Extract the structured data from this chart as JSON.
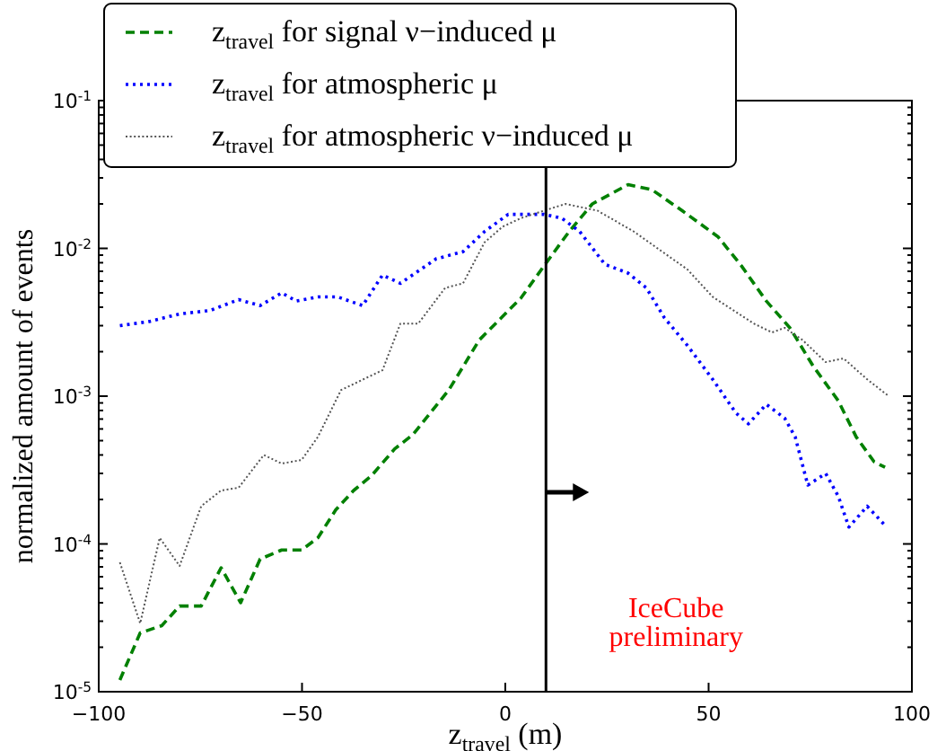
{
  "chart_data": {
    "type": "line",
    "xlabel": "z$_{travel}$ (m)",
    "ylabel": "normalized amount of events",
    "log": "y",
    "xlim": [
      -100,
      100
    ],
    "xticks": [
      {
        "value": -100,
        "label": "−100"
      },
      {
        "value": -50,
        "label": "−50"
      },
      0,
      50,
      100
    ],
    "ylim": [
      1e-05,
      0.1
    ],
    "yticks": [
      {
        "value": 1e-05,
        "label": "10$^{-5}$"
      },
      {
        "value": 2e-05,
        "label": null
      },
      {
        "value": 3e-05,
        "label": null
      },
      {
        "value": 4e-05,
        "label": null
      },
      {
        "value": 5e-05,
        "label": null
      },
      {
        "value": 6e-05,
        "label": null
      },
      {
        "value": 7e-05,
        "label": null
      },
      {
        "value": 8e-05,
        "label": null
      },
      {
        "value": 9e-05,
        "label": null
      },
      {
        "value": 0.0001,
        "label": "10$^{-4}$"
      },
      {
        "value": 0.0002,
        "label": null
      },
      {
        "value": 0.0003,
        "label": null
      },
      {
        "value": 0.0004,
        "label": null
      },
      {
        "value": 0.0005,
        "label": null
      },
      {
        "value": 0.0006,
        "label": null
      },
      {
        "value": 0.0007,
        "label": null
      },
      {
        "value": 0.0008,
        "label": null
      },
      {
        "value": 0.0009,
        "label": null
      },
      {
        "value": 0.001,
        "label": "10$^{-3}$"
      },
      {
        "value": 0.002,
        "label": null
      },
      {
        "value": 0.003,
        "label": null
      },
      {
        "value": 0.004,
        "label": null
      },
      {
        "value": 0.005,
        "label": null
      },
      {
        "value": 0.006,
        "label": null
      },
      {
        "value": 0.007,
        "label": null
      },
      {
        "value": 0.008,
        "label": null
      },
      {
        "value": 0.009,
        "label": null
      },
      {
        "value": 0.01,
        "label": "10$^{-2}$"
      },
      {
        "value": 0.02,
        "label": null
      },
      {
        "value": 0.03,
        "label": null
      },
      {
        "value": 0.04,
        "label": null
      },
      {
        "value": 0.05,
        "label": null
      },
      {
        "value": 0.06,
        "label": null
      },
      {
        "value": 0.07,
        "label": null
      },
      {
        "value": 0.08,
        "label": null
      },
      {
        "value": 0.09,
        "label": null
      },
      {
        "value": 0.1,
        "label": "10$^{-1}$"
      }
    ],
    "grid": false,
    "legend": "top left",
    "marker": "none",
    "ref_lines": [
      {
        "axis": "x",
        "value": 10,
        "color": "#000000"
      }
    ],
    "annotations": [
      "IceCube\npreliminary"
    ],
    "series": [
      {
        "name": "z$_{travel}$ for signal ν−induced μ",
        "color": "#008000",
        "line_style": "dashed",
        "x": [
          -94.8,
          -89.8,
          -84.5,
          -80.1,
          -74.8,
          -69.9,
          -65.1,
          -60.3,
          -55,
          -50.1,
          -46.1,
          -41.7,
          -37.3,
          -32.9,
          -27.2,
          -22.7,
          -13.9,
          -6.4,
          3.8,
          9.5,
          15.7,
          21.4,
          30.2,
          36,
          43.5,
          52.3,
          58.1,
          64.2,
          70,
          75.7,
          81.9,
          86.3,
          90.7,
          93.4
        ],
        "values": [
          1.2e-05,
          2.5e-05,
          2.8e-05,
          3.8e-05,
          3.8e-05,
          6.9e-05,
          4e-05,
          7.9e-05,
          9.1e-05,
          9.1e-05,
          0.00011,
          0.00017,
          0.00023,
          0.00029,
          0.00044,
          0.00055,
          0.0011,
          0.0024,
          0.0046,
          0.0076,
          0.013,
          0.02,
          0.027,
          0.025,
          0.018,
          0.012,
          0.0076,
          0.0044,
          0.0029,
          0.0016,
          0.00093,
          0.00053,
          0.00036,
          0.00033
        ]
      },
      {
        "name": "z$_{travel}$ for atmospheric μ",
        "color": "#0000ff",
        "line_style": "dotted",
        "x": [
          -94.8,
          -87.6,
          -80.1,
          -72.6,
          -65.6,
          -60.3,
          -55,
          -51.4,
          -46.1,
          -41.3,
          -35.1,
          -30.2,
          -25.8,
          -17,
          -10.4,
          -5.1,
          0.7,
          3.8,
          9.5,
          13.9,
          18.3,
          24.5,
          30.2,
          34.7,
          39.1,
          44.8,
          51,
          56.7,
          59.8,
          64.2,
          68.7,
          71.3,
          74.4,
          78.8,
          81.9,
          84.5,
          89,
          93.8
        ],
        "values": [
          0.003,
          0.0032,
          0.0036,
          0.0038,
          0.0045,
          0.0041,
          0.005,
          0.0044,
          0.0047,
          0.0047,
          0.0041,
          0.0066,
          0.0058,
          0.0085,
          0.0095,
          0.013,
          0.017,
          0.017,
          0.017,
          0.016,
          0.013,
          0.0078,
          0.0068,
          0.0054,
          0.0034,
          0.0022,
          0.0013,
          0.00077,
          0.00065,
          0.00088,
          0.00071,
          0.00053,
          0.00025,
          0.0003,
          0.00021,
          0.00013,
          0.00018,
          0.00013
        ]
      },
      {
        "name": "z$_{travel}$ for atmospheric ν−induced μ",
        "color": "#555555",
        "line_style": "dotted",
        "x": [
          -94.8,
          -89.8,
          -85,
          -80.1,
          -74.8,
          -69.9,
          -65.6,
          -59.4,
          -55,
          -50.1,
          -46.1,
          -40.4,
          -30.2,
          -25.8,
          -21.4,
          -14.8,
          -10.4,
          -5.1,
          -0.7,
          3.8,
          9.5,
          14.8,
          22.7,
          31.6,
          44.8,
          51,
          61.1,
          65.6,
          68.7,
          73.1,
          78.8,
          83.2,
          89,
          94.3
        ],
        "values": [
          7.5e-05,
          2.9e-05,
          0.00011,
          7.1e-05,
          0.00018,
          0.00023,
          0.00024,
          0.0004,
          0.00035,
          0.00037,
          0.00053,
          0.0011,
          0.0015,
          0.0031,
          0.0031,
          0.0054,
          0.0058,
          0.011,
          0.014,
          0.016,
          0.018,
          0.02,
          0.018,
          0.013,
          0.0072,
          0.0047,
          0.0031,
          0.0027,
          0.0029,
          0.0024,
          0.0017,
          0.0018,
          0.0013,
          0.001
        ]
      }
    ]
  }
}
